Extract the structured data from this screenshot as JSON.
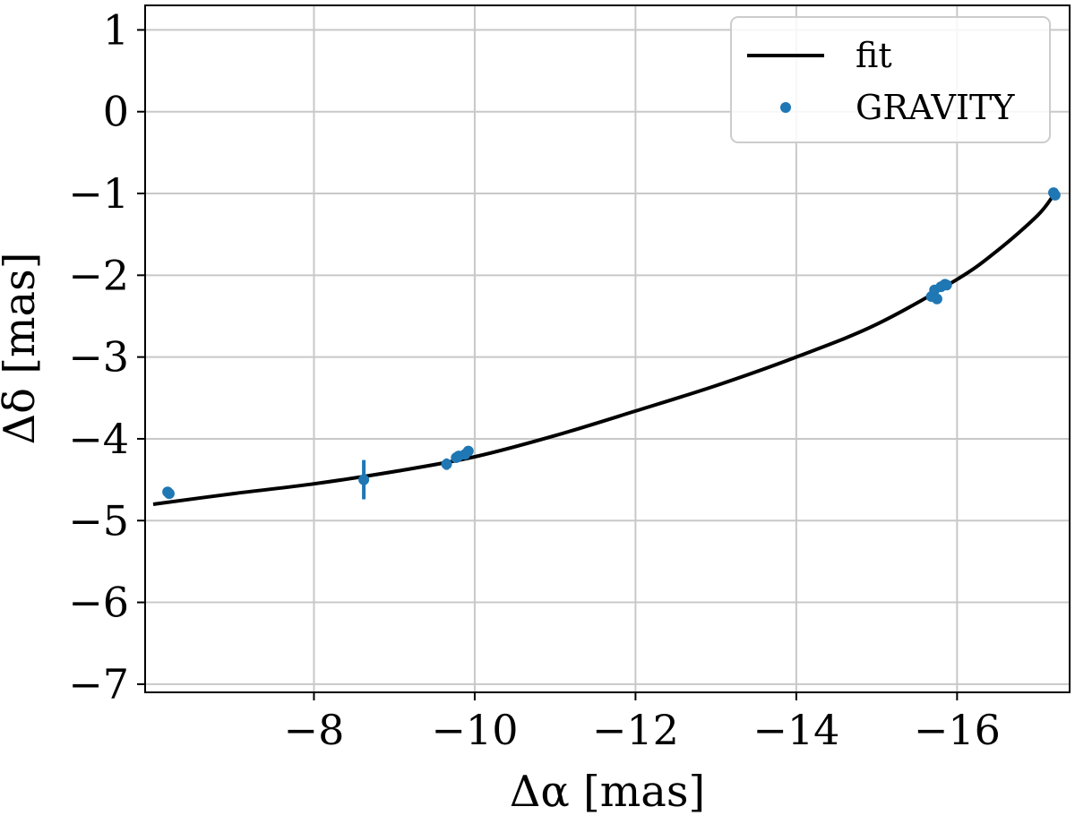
{
  "chart_data": {
    "type": "scatter",
    "title": "",
    "xlabel": "Δα [mas]",
    "ylabel": "Δδ [mas]",
    "xlim": [
      -5.9,
      -17.4
    ],
    "ylim": [
      -7.1,
      1.3
    ],
    "x_inverted": true,
    "grid": true,
    "legend_position": "top-right",
    "xticks": [
      -8,
      -10,
      -12,
      -14,
      -16
    ],
    "yticks": [
      1,
      0,
      -1,
      -2,
      -3,
      -4,
      -5,
      -6,
      -7
    ],
    "xtick_labels": [
      "−8",
      "−10",
      "−12",
      "−14",
      "−16"
    ],
    "ytick_labels": [
      "1",
      "0",
      "−1",
      "−2",
      "−3",
      "−4",
      "−5",
      "−6",
      "−7"
    ],
    "series": [
      {
        "name": "fit",
        "kind": "line",
        "color": "#000000",
        "x": [
          -6.0,
          -7.0,
          -8.0,
          -9.0,
          -10.0,
          -11.0,
          -12.0,
          -13.0,
          -14.0,
          -15.0,
          -16.0,
          -16.5,
          -17.0,
          -17.2
        ],
        "y": [
          -4.8,
          -4.67,
          -4.55,
          -4.4,
          -4.22,
          -3.96,
          -3.66,
          -3.35,
          -3.0,
          -2.6,
          -2.05,
          -1.7,
          -1.27,
          -1.02
        ]
      },
      {
        "name": "GRAVITY",
        "kind": "scatter",
        "color": "#1f77b4",
        "x": [
          -6.18,
          -6.2,
          -8.62,
          -9.65,
          -9.77,
          -9.8,
          -9.88,
          -9.92,
          -15.68,
          -15.72,
          -15.75,
          -15.8,
          -15.85,
          -15.87,
          -17.2,
          -17.22
        ],
        "y": [
          -4.65,
          -4.67,
          -4.5,
          -4.31,
          -4.23,
          -4.21,
          -4.19,
          -4.15,
          -2.26,
          -2.18,
          -2.29,
          -2.14,
          -2.11,
          -2.12,
          -0.99,
          -1.02
        ],
        "yerr": [
          0.04,
          0.04,
          0.24,
          0.07,
          0.03,
          0.03,
          0.04,
          0.04,
          0.05,
          0.04,
          0.04,
          0.04,
          0.03,
          0.03,
          0.03,
          0.03
        ]
      }
    ]
  }
}
